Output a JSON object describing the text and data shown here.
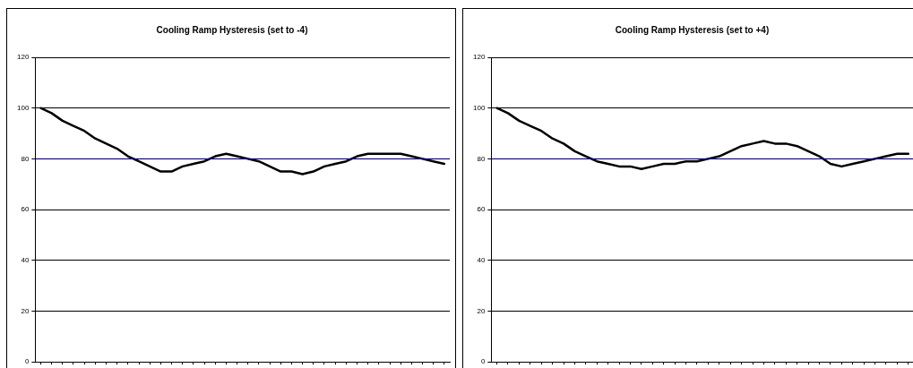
{
  "chart_data": [
    {
      "type": "line",
      "title": "Cooling Ramp Hysteresis (set to -4)",
      "categories": [
        null,
        null,
        null,
        null,
        null,
        null,
        null,
        null,
        null,
        null,
        null,
        null,
        null,
        null,
        null,
        null,
        null,
        null,
        null,
        null,
        null,
        null,
        null,
        null,
        null,
        null,
        null,
        null,
        null,
        null,
        null,
        null,
        null,
        null,
        null,
        null,
        null,
        null
      ],
      "series": [
        {
          "color": "#000000",
          "values": [
            100,
            98,
            95,
            93,
            91,
            88,
            86,
            84,
            81,
            79,
            77,
            75,
            75,
            77,
            78,
            79,
            81,
            82,
            81,
            80,
            79,
            77,
            75,
            75,
            74,
            75,
            77,
            78,
            79,
            81,
            82,
            82,
            82,
            82,
            81,
            80,
            79,
            78
          ]
        }
      ],
      "ylim": [
        0,
        120
      ],
      "yticks": [
        0,
        20,
        40,
        60,
        80,
        100,
        120
      ],
      "grid": "y",
      "tick_labels": "y",
      "legend": false,
      "marker": "none",
      "line_style": "solid",
      "ref_lines": [
        {
          "axis": "y",
          "value": 80,
          "color": "#000080"
        }
      ]
    },
    {
      "type": "line",
      "title": "Cooling Ramp Hysteresis (set to +4)",
      "categories": [
        null,
        null,
        null,
        null,
        null,
        null,
        null,
        null,
        null,
        null,
        null,
        null,
        null,
        null,
        null,
        null,
        null,
        null,
        null,
        null,
        null,
        null,
        null,
        null,
        null,
        null,
        null,
        null,
        null,
        null,
        null,
        null,
        null,
        null,
        null,
        null,
        null,
        null
      ],
      "series": [
        {
          "color": "#000000",
          "values": [
            100,
            98,
            95,
            93,
            91,
            88,
            86,
            83,
            81,
            79,
            78,
            77,
            77,
            76,
            77,
            78,
            78,
            79,
            79,
            80,
            81,
            83,
            85,
            86,
            87,
            86,
            86,
            85,
            83,
            81,
            78,
            77,
            78,
            79,
            80,
            81,
            82,
            82
          ]
        }
      ],
      "ylim": [
        0,
        120
      ],
      "yticks": [
        0,
        20,
        40,
        60,
        80,
        100,
        120
      ],
      "grid": "y",
      "tick_labels": "y",
      "legend": false,
      "marker": "none",
      "line_style": "solid",
      "ref_lines": [
        {
          "axis": "y",
          "value": 80,
          "color": "#000080"
        }
      ]
    }
  ]
}
